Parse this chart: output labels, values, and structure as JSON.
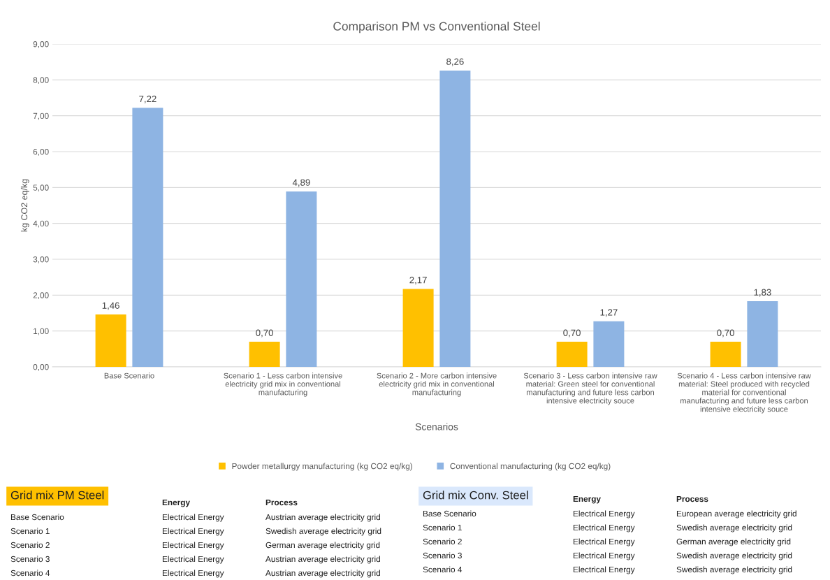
{
  "chart_data": {
    "type": "bar",
    "title": "Comparison PM vs Conventional Steel",
    "xlabel": "Scenarios",
    "ylabel": "kg CO2 eq/kg",
    "categories": [
      "Base Scenario",
      "Scenario 1 - Less carbon intensive\nelectricity grid mix in conventional\nmanufacturing",
      "Scenario 2 - More carbon intensive\nelectricity grid mix in conventional\nmanufacturing",
      "Scenario 3 - Less carbon intensive raw\nmaterial: Green steel for conventional\nmanufacturing and future less carbon\nintensive electricity souce",
      "Scenario 4 - Less carbon intensive raw\nmaterial: Steel produced with recycled\nmaterial for conventional\nmanufacturing and future less carbon\nintensive electricity souce"
    ],
    "series": [
      {
        "name": "Powder metallurgy manufacturing (kg CO2 eq/kg)",
        "color": "#ffc000",
        "values": [
          1.46,
          0.7,
          2.17,
          0.7,
          0.7
        ],
        "value_labels": [
          "1,46",
          "0,70",
          "2,17",
          "0,70",
          "0,70"
        ]
      },
      {
        "name": "Conventional manufacturing (kg CO2 eq/kg)",
        "color": "#8eb4e3",
        "values": [
          7.22,
          4.89,
          8.26,
          1.27,
          1.83
        ],
        "value_labels": [
          "7,22",
          "4,89",
          "8,26",
          "1,27",
          "1,83"
        ]
      }
    ],
    "ylim": [
      0,
      9
    ],
    "yticks": [
      {
        "value": 0,
        "label": "0,00"
      },
      {
        "value": 1,
        "label": "1,00"
      },
      {
        "value": 2,
        "label": "2,00"
      },
      {
        "value": 3,
        "label": "3,00"
      },
      {
        "value": 4,
        "label": "4,00"
      },
      {
        "value": 5,
        "label": "5,00"
      },
      {
        "value": 6,
        "label": "6,00"
      },
      {
        "value": 7,
        "label": "7,00"
      },
      {
        "value": 8,
        "label": "8,00"
      },
      {
        "value": 9,
        "label": "9,00"
      }
    ],
    "grid": "y",
    "legend": "bottom",
    "annotations": [
      "Grid mix PM Steel",
      "Energy",
      "Process",
      "Base Scenario",
      "Electrical Energy",
      "Austrian average electricity grid",
      "Scenario 1",
      "Electrical Energy",
      "Swedish average electricity grid",
      "Scenario 2",
      "Electrical Energy",
      "German average electricity grid",
      "Scenario 3",
      "Electrical Energy",
      "Austrian average electricity grid",
      "Scenario 4",
      "Electrical Energy",
      "Austrian average electricity grid",
      "Grid mix Conv. Steel",
      "Energy",
      "Process",
      "Base Scenario",
      "Electrical Energy",
      "European average electricity grid",
      "Scenario 1",
      "Electrical Energy",
      "Swedish average electricity grid",
      "Scenario 2",
      "Electrical Energy",
      "German average electricity grid",
      "Scenario 3",
      "Electrical Energy",
      "Swedish average electricity grid",
      "Scenario 4",
      "Electrical Energy",
      "Swedish average electricity grid"
    ]
  }
}
